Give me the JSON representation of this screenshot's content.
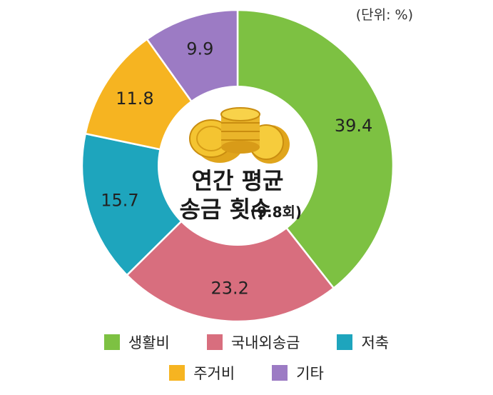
{
  "unit_label": "(단위: %)",
  "center": {
    "line1": "연간 평균",
    "line2": "송금 횟수",
    "line2_note": "(9.8회)"
  },
  "chart_data": {
    "type": "pie",
    "donut": true,
    "categories": [
      "생활비",
      "국내외송금",
      "저축",
      "주거비",
      "기타"
    ],
    "values": [
      39.4,
      23.2,
      15.7,
      11.8,
      9.9
    ],
    "data_labels": [
      "39.4",
      "23.2",
      "15.7",
      "11.8",
      "9.9"
    ],
    "colors": [
      "#7dc142",
      "#d86e7e",
      "#1ea5bd",
      "#f6b421",
      "#9c7bc4"
    ],
    "start": "12 o'clock",
    "direction": "clockwise",
    "legend": {
      "placement": "bottom",
      "rows": [
        [
          "생활비",
          "국내외송금",
          "저축"
        ],
        [
          "주거비",
          "기타"
        ]
      ]
    }
  },
  "icons": {
    "center": "gold-coins-icon"
  }
}
